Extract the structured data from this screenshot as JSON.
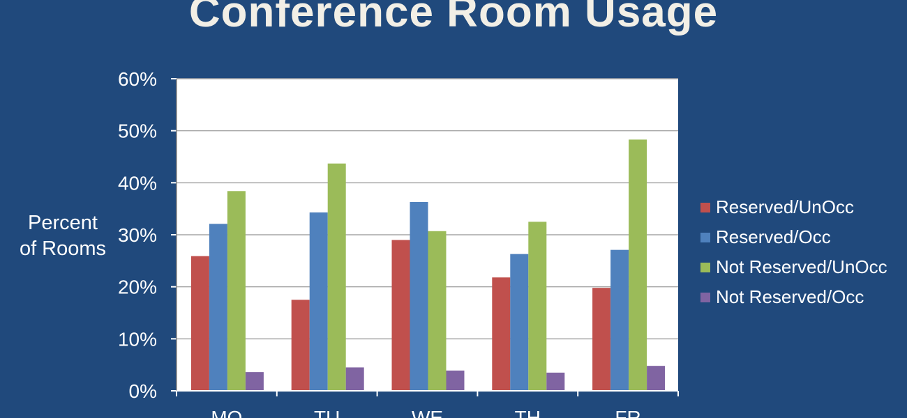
{
  "chart_data": {
    "type": "bar",
    "title": "Conference Room Usage",
    "ylabel_lines": [
      "Percent",
      "of Rooms"
    ],
    "xlabel": "",
    "categories": [
      "MO",
      "TU",
      "WE",
      "TH",
      "FR"
    ],
    "ylim": [
      0,
      60
    ],
    "yticks": [
      0,
      10,
      20,
      30,
      40,
      50,
      60
    ],
    "ytick_labels": [
      "0%",
      "10%",
      "20%",
      "30%",
      "40%",
      "50%",
      "60%"
    ],
    "grid": true,
    "legend_position": "right",
    "series": [
      {
        "name": "Reserved/UnOcc",
        "color": "#c0504d",
        "values": [
          25.9,
          17.5,
          29.0,
          21.8,
          19.8
        ]
      },
      {
        "name": "Reserved/Occ",
        "color": "#4f81bd",
        "values": [
          32.1,
          34.3,
          36.3,
          26.3,
          27.1
        ]
      },
      {
        "name": "Not Reserved/UnOcc",
        "color": "#9bbb59",
        "values": [
          38.4,
          43.7,
          30.7,
          32.5,
          48.3
        ]
      },
      {
        "name": "Not Reserved/Occ",
        "color": "#8064a2",
        "values": [
          3.6,
          4.5,
          3.9,
          3.5,
          4.8
        ]
      }
    ]
  }
}
